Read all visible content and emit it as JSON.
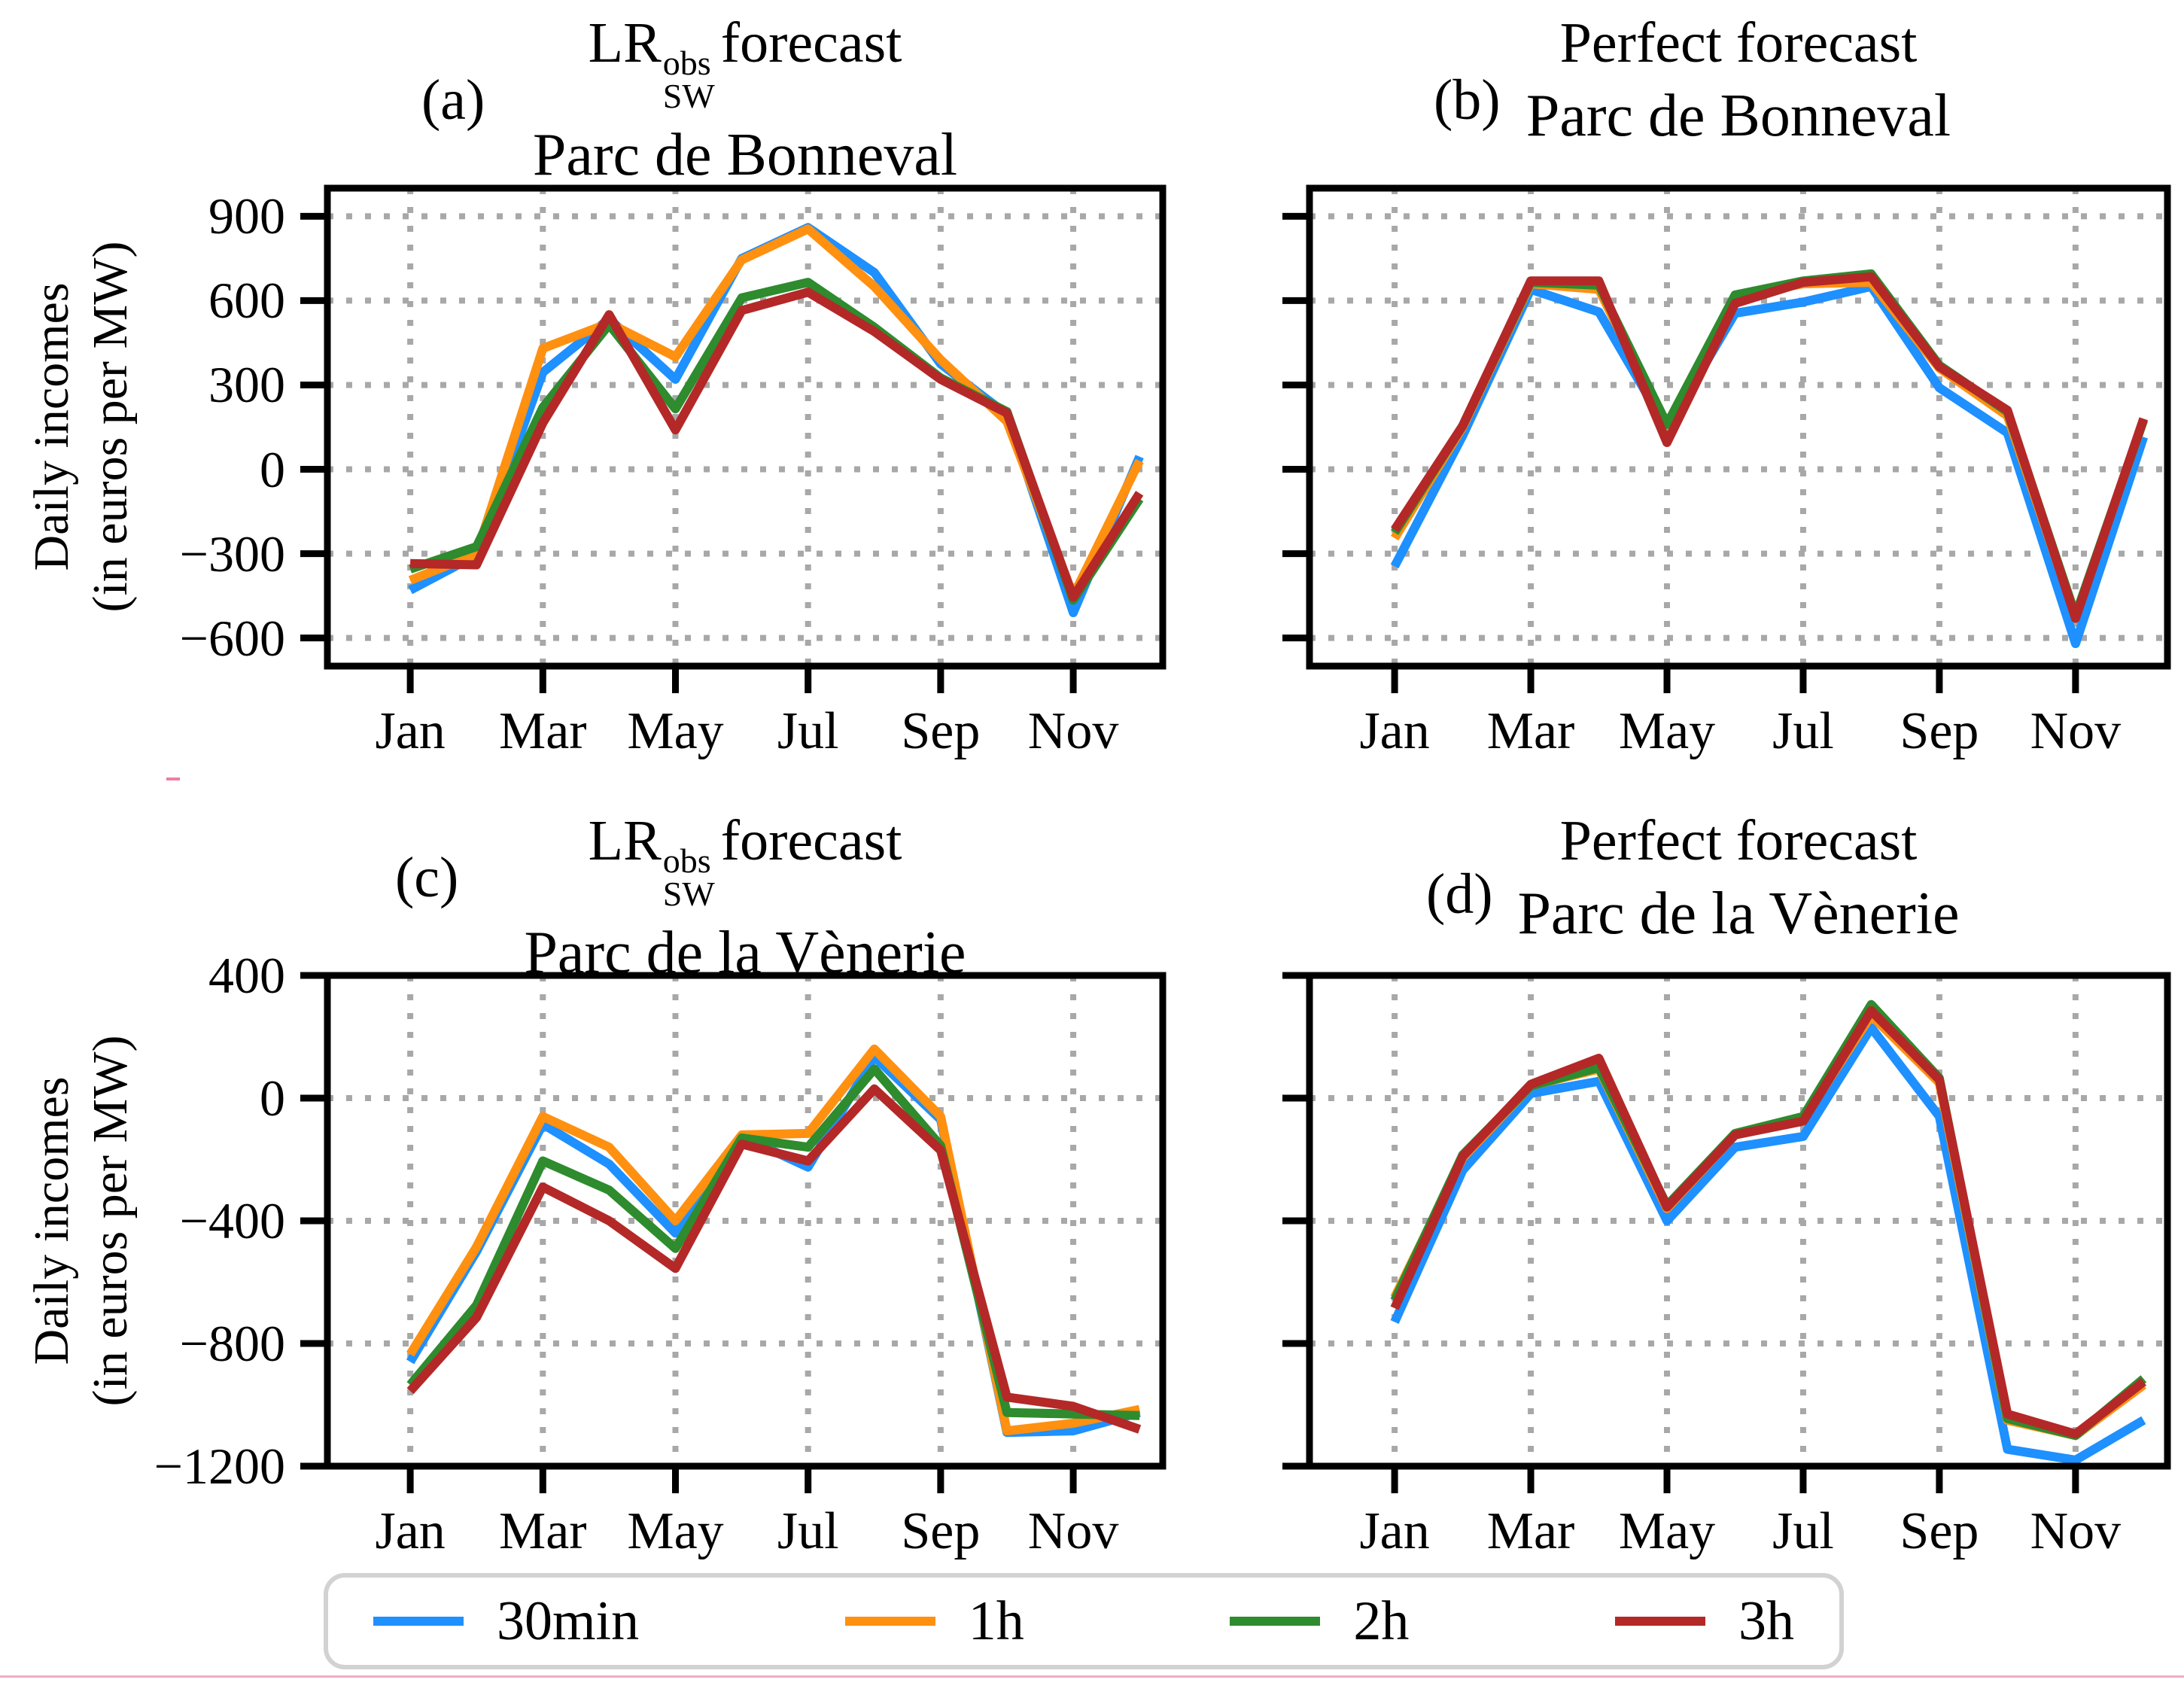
{
  "figure": {
    "background": "#ffffff"
  },
  "colors": {
    "series_30min": "#1E90FF",
    "series_1h": "#FF9010",
    "series_2h": "#2E8B2E",
    "series_3h": "#B42828",
    "grid": "#a8a8a8",
    "spine": "#000000",
    "legend_border": "#d2d2d2",
    "pink_rule": "#efaec2"
  },
  "ylabel": {
    "line1": "Daily incomes",
    "line2": "(in euros per MW)"
  },
  "legend": {
    "items": [
      {
        "label": "30min",
        "color": "#1E90FF"
      },
      {
        "label": "1h",
        "color": "#FF9010"
      },
      {
        "label": "2h",
        "color": "#2E8B2E"
      },
      {
        "label": "3h",
        "color": "#B42828"
      }
    ]
  },
  "chart_data": [
    {
      "id": "a",
      "panel_tag": "(a)",
      "type": "line",
      "title": "LR_SW^obs forecast",
      "title_math": {
        "prefix": "LR",
        "superscript": "obs",
        "subscript": "SW",
        "suffix": "forecast"
      },
      "subtitle": "Parc de Bonneval",
      "xlabel": "",
      "ylabel": "Daily incomes (in euros per MW)",
      "x": [
        "Jan",
        "Feb",
        "Mar",
        "Apr",
        "May",
        "Jun",
        "Jul",
        "Aug",
        "Sep",
        "Oct",
        "Nov",
        "Dec"
      ],
      "xtick_labels": [
        "Jan",
        "Mar",
        "May",
        "Jul",
        "Sep",
        "Nov"
      ],
      "ylim": [
        -700,
        1000
      ],
      "yticks": [
        900,
        600,
        300,
        0,
        -300,
        -600
      ],
      "grid": true,
      "series": [
        {
          "name": "30min",
          "color": "#1E90FF",
          "values": [
            -430,
            -305,
            345,
            535,
            320,
            750,
            860,
            700,
            375,
            195,
            -510,
            45
          ]
        },
        {
          "name": "1h",
          "color": "#FF9010",
          "values": [
            -395,
            -300,
            430,
            520,
            400,
            745,
            855,
            650,
            390,
            170,
            -450,
            30
          ]
        },
        {
          "name": "2h",
          "color": "#2E8B2E",
          "values": [
            -355,
            -275,
            220,
            515,
            215,
            610,
            665,
            505,
            325,
            205,
            -465,
            -105
          ]
        },
        {
          "name": "3h",
          "color": "#B42828",
          "values": [
            -335,
            -340,
            165,
            550,
            140,
            565,
            630,
            490,
            320,
            200,
            -455,
            -85
          ]
        }
      ]
    },
    {
      "id": "b",
      "panel_tag": "(b)",
      "type": "line",
      "title": "Perfect forecast",
      "subtitle": "Parc de Bonneval",
      "xlabel": "",
      "ylabel": "",
      "x": [
        "Jan",
        "Feb",
        "Mar",
        "Apr",
        "May",
        "Jun",
        "Jul",
        "Aug",
        "Sep",
        "Oct",
        "Nov",
        "Dec"
      ],
      "xtick_labels": [
        "Jan",
        "Mar",
        "May",
        "Jul",
        "Sep",
        "Nov"
      ],
      "ylim": [
        -700,
        1000
      ],
      "yticks": [
        900,
        600,
        300,
        0,
        -300,
        -600
      ],
      "grid": true,
      "series": [
        {
          "name": "30min",
          "color": "#1E90FF",
          "values": [
            -345,
            120,
            640,
            560,
            145,
            555,
            595,
            650,
            290,
            130,
            -620,
            115
          ]
        },
        {
          "name": "1h",
          "color": "#FF9010",
          "values": [
            -245,
            150,
            660,
            640,
            155,
            615,
            660,
            665,
            360,
            190,
            -525,
            175
          ]
        },
        {
          "name": "2h",
          "color": "#2E8B2E",
          "values": [
            -225,
            155,
            665,
            655,
            160,
            620,
            670,
            695,
            370,
            205,
            -520,
            175
          ]
        },
        {
          "name": "3h",
          "color": "#B42828",
          "values": [
            -215,
            155,
            670,
            670,
            95,
            590,
            665,
            685,
            365,
            210,
            -530,
            180
          ]
        }
      ]
    },
    {
      "id": "c",
      "panel_tag": "(c)",
      "type": "line",
      "title": "LR_SW^obs forecast",
      "title_math": {
        "prefix": "LR",
        "superscript": "obs",
        "subscript": "SW",
        "suffix": "forecast"
      },
      "subtitle": "Parc de la Vènerie",
      "xlabel": "",
      "ylabel": "Daily incomes (in euros per MW)",
      "x": [
        "Jan",
        "Feb",
        "Mar",
        "Apr",
        "May",
        "Jun",
        "Jul",
        "Aug",
        "Sep",
        "Oct",
        "Nov",
        "Dec"
      ],
      "xtick_labels": [
        "Jan",
        "Mar",
        "May",
        "Jul",
        "Sep",
        "Nov"
      ],
      "ylim": [
        -1200,
        400
      ],
      "yticks": [
        400,
        0,
        -400,
        -800,
        -1200
      ],
      "grid": true,
      "series": [
        {
          "name": "30min",
          "color": "#1E90FF",
          "values": [
            -860,
            -500,
            -85,
            -215,
            -440,
            -125,
            -225,
            135,
            -70,
            -1090,
            -1085,
            -1025
          ]
        },
        {
          "name": "1h",
          "color": "#FF9010",
          "values": [
            -835,
            -485,
            -60,
            -160,
            -400,
            -120,
            -115,
            160,
            -60,
            -1085,
            -1060,
            -1015
          ]
        },
        {
          "name": "2h",
          "color": "#2E8B2E",
          "values": [
            -935,
            -675,
            -205,
            -300,
            -490,
            -130,
            -160,
            95,
            -155,
            -1025,
            -1030,
            -1035
          ]
        },
        {
          "name": "3h",
          "color": "#B42828",
          "values": [
            -955,
            -715,
            -290,
            -400,
            -555,
            -150,
            -205,
            30,
            -170,
            -975,
            -1005,
            -1080
          ]
        }
      ]
    },
    {
      "id": "d",
      "panel_tag": "(d)",
      "type": "line",
      "title": "Perfect forecast",
      "subtitle": "Parc de la Vènerie",
      "xlabel": "",
      "ylabel": "",
      "x": [
        "Jan",
        "Feb",
        "Mar",
        "Apr",
        "May",
        "Jun",
        "Jul",
        "Aug",
        "Sep",
        "Oct",
        "Nov",
        "Dec"
      ],
      "xtick_labels": [
        "Jan",
        "Mar",
        "May",
        "Jul",
        "Sep",
        "Nov"
      ],
      "ylim": [
        -1200,
        400
      ],
      "yticks": [
        400,
        0,
        -400,
        -800,
        -1200
      ],
      "grid": true,
      "series": [
        {
          "name": "30min",
          "color": "#1E90FF",
          "values": [
            -730,
            -235,
            15,
            55,
            -400,
            -160,
            -125,
            230,
            -60,
            -1145,
            -1180,
            -1050
          ]
        },
        {
          "name": "1h",
          "color": "#FF9010",
          "values": [
            -650,
            -195,
            40,
            95,
            -360,
            -120,
            -70,
            270,
            50,
            -1050,
            -1100,
            -935
          ]
        },
        {
          "name": "2h",
          "color": "#2E8B2E",
          "values": [
            -660,
            -185,
            40,
            100,
            -350,
            -115,
            -60,
            305,
            65,
            -1045,
            -1100,
            -915
          ]
        },
        {
          "name": "3h",
          "color": "#B42828",
          "values": [
            -685,
            -190,
            45,
            130,
            -355,
            -120,
            -75,
            285,
            60,
            -1030,
            -1095,
            -925
          ]
        }
      ]
    }
  ]
}
